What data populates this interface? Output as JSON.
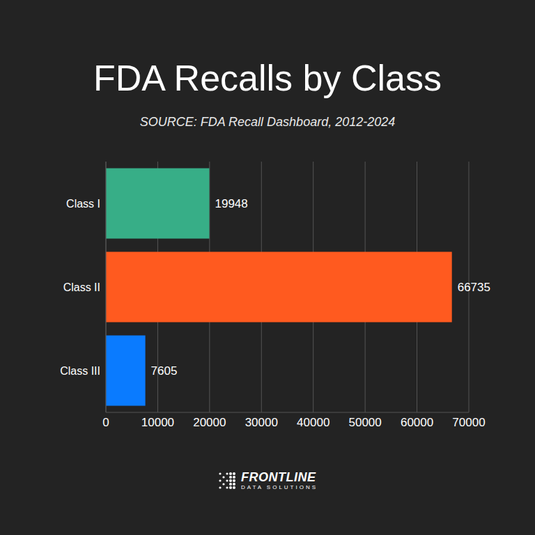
{
  "chart_data": {
    "type": "bar",
    "title": "FDA Recalls by Class",
    "subtitle": "SOURCE: FDA Recall Dashboard, 2012-2024",
    "categories": [
      "Class I",
      "Class II",
      "Class III"
    ],
    "values": [
      19948,
      66735,
      7605
    ],
    "colors": [
      "#37ae87",
      "#ff5a1f",
      "#0a7bff"
    ],
    "orientation": "horizontal",
    "xlim": [
      0,
      70000
    ],
    "xticks": [
      0,
      10000,
      20000,
      30000,
      40000,
      50000,
      60000,
      70000
    ],
    "grid": true,
    "data_labels": true,
    "annotations": [
      "FRONTLINE",
      "DATA SOLUTIONS"
    ]
  }
}
